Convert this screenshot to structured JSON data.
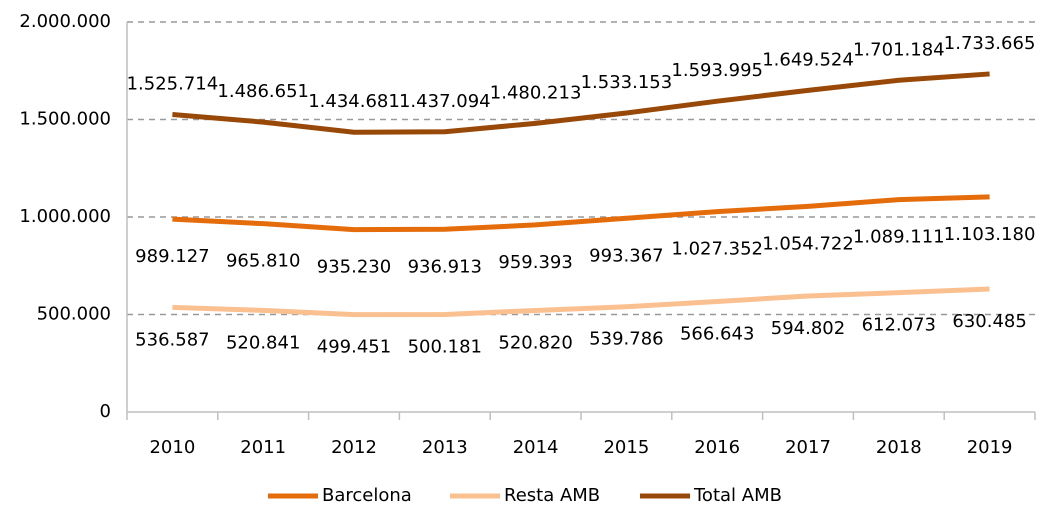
{
  "chart_data": {
    "type": "line",
    "categories": [
      "2010",
      "2011",
      "2012",
      "2013",
      "2014",
      "2015",
      "2016",
      "2017",
      "2018",
      "2019"
    ],
    "series": [
      {
        "name": "Barcelona",
        "color": "#e46c0a",
        "values": [
          989127,
          965810,
          935230,
          936913,
          959393,
          993367,
          1027352,
          1054722,
          1089111,
          1103180
        ],
        "value_labels": [
          "989.127",
          "965.810",
          "935.230",
          "936.913",
          "959.393",
          "993.367",
          "1.027.352",
          "1.054.722",
          "1.089.111",
          "1.103.180"
        ]
      },
      {
        "name": "Resta AMB",
        "color": "#fac090",
        "values": [
          536587,
          520841,
          499451,
          500181,
          520820,
          539786,
          566643,
          594802,
          612073,
          630485
        ],
        "value_labels": [
          "536.587",
          "520.841",
          "499.451",
          "500.181",
          "520.820",
          "539.786",
          "566.643",
          "594.802",
          "612.073",
          "630.485"
        ]
      },
      {
        "name": "Total AMB",
        "color": "#984807",
        "values": [
          1525714,
          1486651,
          1434681,
          1437094,
          1480213,
          1533153,
          1593995,
          1649524,
          1701184,
          1733665
        ],
        "value_labels": [
          "1.525.714",
          "1.486.651",
          "1.434.681",
          "1.437.094",
          "1.480.213",
          "1.533.153",
          "1.593.995",
          "1.649.524",
          "1.701.184",
          "1.733.665"
        ]
      }
    ],
    "ylim": [
      0,
      2000000
    ],
    "yticks": [
      0,
      {
        "value": 500000,
        "label": "500.000"
      },
      {
        "value": 1000000,
        "label": "1.000.000"
      },
      {
        "value": 1500000,
        "label": "1.500.000"
      },
      {
        "value": 2000000,
        "label": "2.000.000"
      }
    ],
    "grid": true,
    "legend": "bottom"
  }
}
